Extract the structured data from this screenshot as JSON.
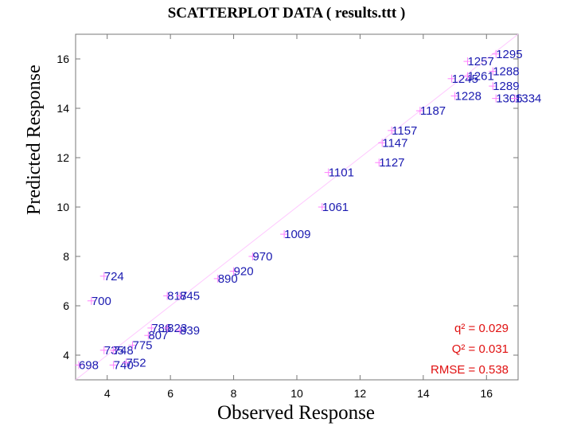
{
  "chart_data": {
    "type": "scatter",
    "title": "SCATTERPLOT DATA ( results.ttt )",
    "xlabel": "Observed Response",
    "ylabel": "Predicted Response",
    "xlim": [
      3,
      17
    ],
    "ylim": [
      3,
      17
    ],
    "xticks": [
      4,
      6,
      8,
      10,
      12,
      14,
      16
    ],
    "yticks": [
      4,
      6,
      8,
      10,
      12,
      14,
      16
    ],
    "grid": false,
    "stats": [
      {
        "label": "q² = 0.029"
      },
      {
        "label": "Q² = 0.031"
      },
      {
        "label": "RMSE = 0.538"
      }
    ],
    "labeled_points": [
      {
        "label": "698",
        "x": 3.1,
        "y": 3.6
      },
      {
        "label": "700",
        "x": 3.5,
        "y": 6.2
      },
      {
        "label": "724",
        "x": 3.9,
        "y": 7.2
      },
      {
        "label": "735",
        "x": 3.9,
        "y": 4.2
      },
      {
        "label": "748",
        "x": 4.2,
        "y": 4.2
      },
      {
        "label": "775",
        "x": 4.8,
        "y": 4.4
      },
      {
        "label": "740",
        "x": 4.2,
        "y": 3.6
      },
      {
        "label": "752",
        "x": 4.6,
        "y": 3.7
      },
      {
        "label": "786",
        "x": 5.4,
        "y": 5.1
      },
      {
        "label": "807",
        "x": 5.3,
        "y": 4.8
      },
      {
        "label": "817",
        "x": 5.9,
        "y": 6.4
      },
      {
        "label": "823",
        "x": 5.9,
        "y": 5.1
      },
      {
        "label": "839",
        "x": 6.3,
        "y": 5.0
      },
      {
        "label": "845",
        "x": 6.3,
        "y": 6.4
      },
      {
        "label": "890",
        "x": 7.5,
        "y": 7.1
      },
      {
        "label": "920",
        "x": 8.0,
        "y": 7.4
      },
      {
        "label": "970",
        "x": 8.6,
        "y": 8.0
      },
      {
        "label": "1009",
        "x": 9.6,
        "y": 8.9
      },
      {
        "label": "1061",
        "x": 10.8,
        "y": 10.0
      },
      {
        "label": "1101",
        "x": 11.0,
        "y": 11.4
      },
      {
        "label": "1127",
        "x": 12.6,
        "y": 11.8
      },
      {
        "label": "1147",
        "x": 12.7,
        "y": 12.6
      },
      {
        "label": "1157",
        "x": 13.0,
        "y": 13.1
      },
      {
        "label": "1187",
        "x": 13.9,
        "y": 13.9
      },
      {
        "label": "1228",
        "x": 15.0,
        "y": 14.5
      },
      {
        "label": "1245",
        "x": 14.9,
        "y": 15.2
      },
      {
        "label": "1257",
        "x": 15.4,
        "y": 15.9
      },
      {
        "label": "1261",
        "x": 15.4,
        "y": 15.3
      },
      {
        "label": "1288",
        "x": 16.2,
        "y": 15.5
      },
      {
        "label": "1289",
        "x": 16.2,
        "y": 14.9
      },
      {
        "label": "1295",
        "x": 16.3,
        "y": 16.2
      },
      {
        "label": "1306",
        "x": 16.3,
        "y": 14.4
      },
      {
        "label": "1334",
        "x": 16.9,
        "y": 14.4
      }
    ]
  }
}
